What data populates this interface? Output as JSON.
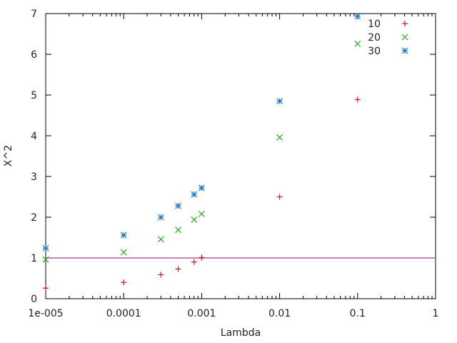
{
  "chart_data": {
    "type": "scatter",
    "title": "",
    "xlabel": "Lambda",
    "ylabel": "X^2",
    "xscale": "log",
    "xlim": [
      1e-05,
      1
    ],
    "ylim": [
      0,
      7
    ],
    "grid": false,
    "legend_position": "top-right",
    "x_ticks": [
      {
        "value": 1e-05,
        "label": "1e-005"
      },
      {
        "value": 0.0001,
        "label": "0.0001"
      },
      {
        "value": 0.001,
        "label": "0.001"
      },
      {
        "value": 0.01,
        "label": "0.01"
      },
      {
        "value": 0.1,
        "label": "0.1"
      },
      {
        "value": 1,
        "label": "1"
      }
    ],
    "y_ticks": [
      {
        "value": 0,
        "label": "0"
      },
      {
        "value": 1,
        "label": "1"
      },
      {
        "value": 2,
        "label": "2"
      },
      {
        "value": 3,
        "label": "3"
      },
      {
        "value": 4,
        "label": "4"
      },
      {
        "value": 5,
        "label": "5"
      },
      {
        "value": 6,
        "label": "6"
      },
      {
        "value": 7,
        "label": "7"
      }
    ],
    "reference_line": {
      "y": 1,
      "color": "#b0308e"
    },
    "series": [
      {
        "name": "10",
        "marker": "plus",
        "color": "#cc1111",
        "points": [
          {
            "x": 1e-05,
            "y": 0.26
          },
          {
            "x": 0.0001,
            "y": 0.4
          },
          {
            "x": 0.0003,
            "y": 0.59
          },
          {
            "x": 0.0005,
            "y": 0.73
          },
          {
            "x": 0.0008,
            "y": 0.9
          },
          {
            "x": 0.001,
            "y": 1.01
          },
          {
            "x": 0.01,
            "y": 2.5
          },
          {
            "x": 0.1,
            "y": 4.89
          }
        ]
      },
      {
        "name": "20",
        "marker": "cross",
        "color": "#22aa22",
        "points": [
          {
            "x": 1e-05,
            "y": 0.96
          },
          {
            "x": 0.0001,
            "y": 1.14
          },
          {
            "x": 0.0003,
            "y": 1.46
          },
          {
            "x": 0.0005,
            "y": 1.69
          },
          {
            "x": 0.0008,
            "y": 1.94
          },
          {
            "x": 0.001,
            "y": 2.08
          },
          {
            "x": 0.01,
            "y": 3.96
          },
          {
            "x": 0.1,
            "y": 6.26
          }
        ]
      },
      {
        "name": "30",
        "marker": "star",
        "color": "#1f77c4",
        "points": [
          {
            "x": 1e-05,
            "y": 1.24
          },
          {
            "x": 0.0001,
            "y": 1.56
          },
          {
            "x": 0.0003,
            "y": 2.0
          },
          {
            "x": 0.0005,
            "y": 2.28
          },
          {
            "x": 0.0008,
            "y": 2.56
          },
          {
            "x": 0.001,
            "y": 2.72
          },
          {
            "x": 0.01,
            "y": 4.85
          },
          {
            "x": 0.1,
            "y": 6.93
          }
        ]
      }
    ]
  }
}
